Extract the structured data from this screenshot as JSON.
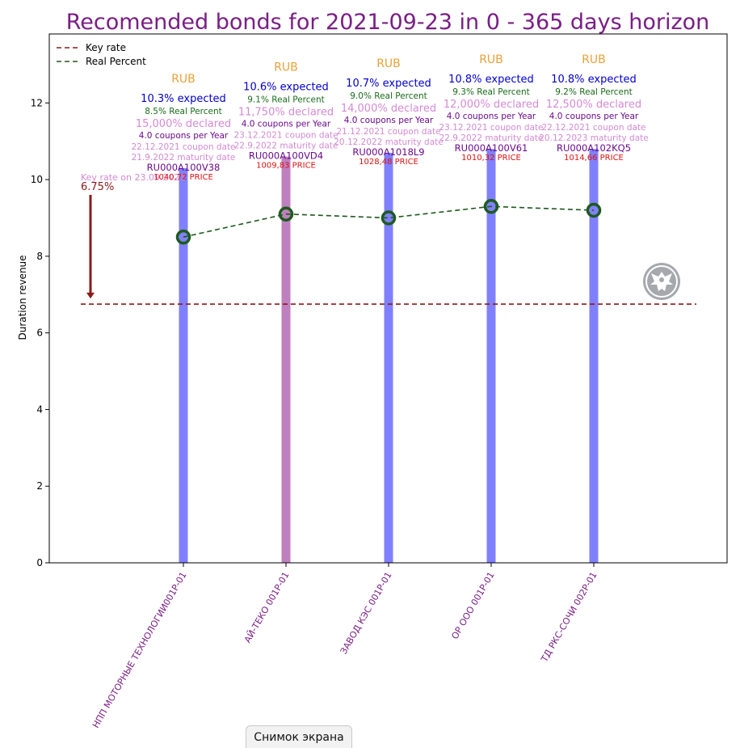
{
  "title": "Recomended bonds for 2021-09-23 in 0 - 365 days horizon",
  "screenshot_button": "Снимок экрана",
  "colors": {
    "title": "#7a1e86",
    "key_rate": "#8b1a1a",
    "real_percent": "#1e5a1e",
    "bar": "#8080ff",
    "bar_highlight": "#bf80bf",
    "currency": "#e8a23a",
    "expected": "#0000cc",
    "real": "#1a6b1a",
    "declared": "#d58ad5",
    "coupons": "#6a0a8a",
    "dates": "#d38ad3",
    "isin": "#6a0a8a",
    "price": "#dd1111",
    "xtick": "#7a1e86"
  },
  "chart_data": {
    "type": "bar",
    "title": "Recomended bonds for 2021-09-23 in 0 - 365 days horizon",
    "ylabel": "Duration revenue",
    "xlabel": "",
    "ylim": [
      0,
      13.8
    ],
    "yticks": [
      0,
      2,
      4,
      6,
      8,
      10,
      12
    ],
    "grid": false,
    "legend_placement": "top-left",
    "legend": [
      "Key rate",
      "Real Percent"
    ],
    "key_rate": 6.75,
    "key_rate_annotation": {
      "label": "Key rate on 23.09.2021",
      "value_label": "6.75%"
    },
    "categories": [
      "НПП МОТОРНЫЕ ТЕХНОЛОГИИ001Р-01",
      "АЙ-ТЕКО 001Р-01",
      "ЗАВОД КЭС 001Р-01",
      "ОР ООО 001Р-01",
      "ТД РКС-СОЧИ 002Р-01"
    ],
    "bar_values": [
      10.3,
      10.6,
      10.7,
      10.8,
      10.8
    ],
    "highlight_index": 1,
    "real_percent": [
      8.5,
      9.1,
      9.0,
      9.3,
      9.2
    ],
    "annotations": [
      {
        "currency": "RUB",
        "expected": "10.3% expected",
        "real": "8.5% Real Percent",
        "declared": "15,000% declared",
        "coupons": "4.0 coupons per Year",
        "coupon_date": "22.12.2021 coupon date",
        "maturity_date": "21.9.2022 maturity date",
        "isin": "RU000A100V38",
        "price": "1040,72 PRICE"
      },
      {
        "currency": "RUB",
        "expected": "10.6% expected",
        "real": "9.1% Real Percent",
        "declared": "11,750% declared",
        "coupons": "4.0 coupons per Year",
        "coupon_date": "23.12.2021 coupon date",
        "maturity_date": "22.9.2022 maturity date",
        "isin": "RU000A100VD4",
        "price": "1009,83 PRICE"
      },
      {
        "currency": "RUB",
        "expected": "10.7% expected",
        "real": "9.0% Real Percent",
        "declared": "14,000% declared",
        "coupons": "4.0 coupons per Year",
        "coupon_date": "21.12.2021 coupon date",
        "maturity_date": "20.12.2022 maturity date",
        "isin": "RU000A1018L9",
        "price": "1028,48 PRICE"
      },
      {
        "currency": "RUB",
        "expected": "10.8% expected",
        "real": "9.3% Real Percent",
        "declared": "12,000% declared",
        "coupons": "4.0 coupons per Year",
        "coupon_date": "23.12.2021 coupon date",
        "maturity_date": "22.9.2022 maturity date",
        "isin": "RU000A100V61",
        "price": "1010,32 PRICE"
      },
      {
        "currency": "RUB",
        "expected": "10.8% expected",
        "real": "9.2% Real Percent",
        "declared": "12,500% declared",
        "coupons": "4.0 coupons per Year",
        "coupon_date": "22.12.2021 coupon date",
        "maturity_date": "20.12.2023 maturity date",
        "isin": "RU000A102KQ5",
        "price": "1014,66 PRICE"
      }
    ]
  }
}
